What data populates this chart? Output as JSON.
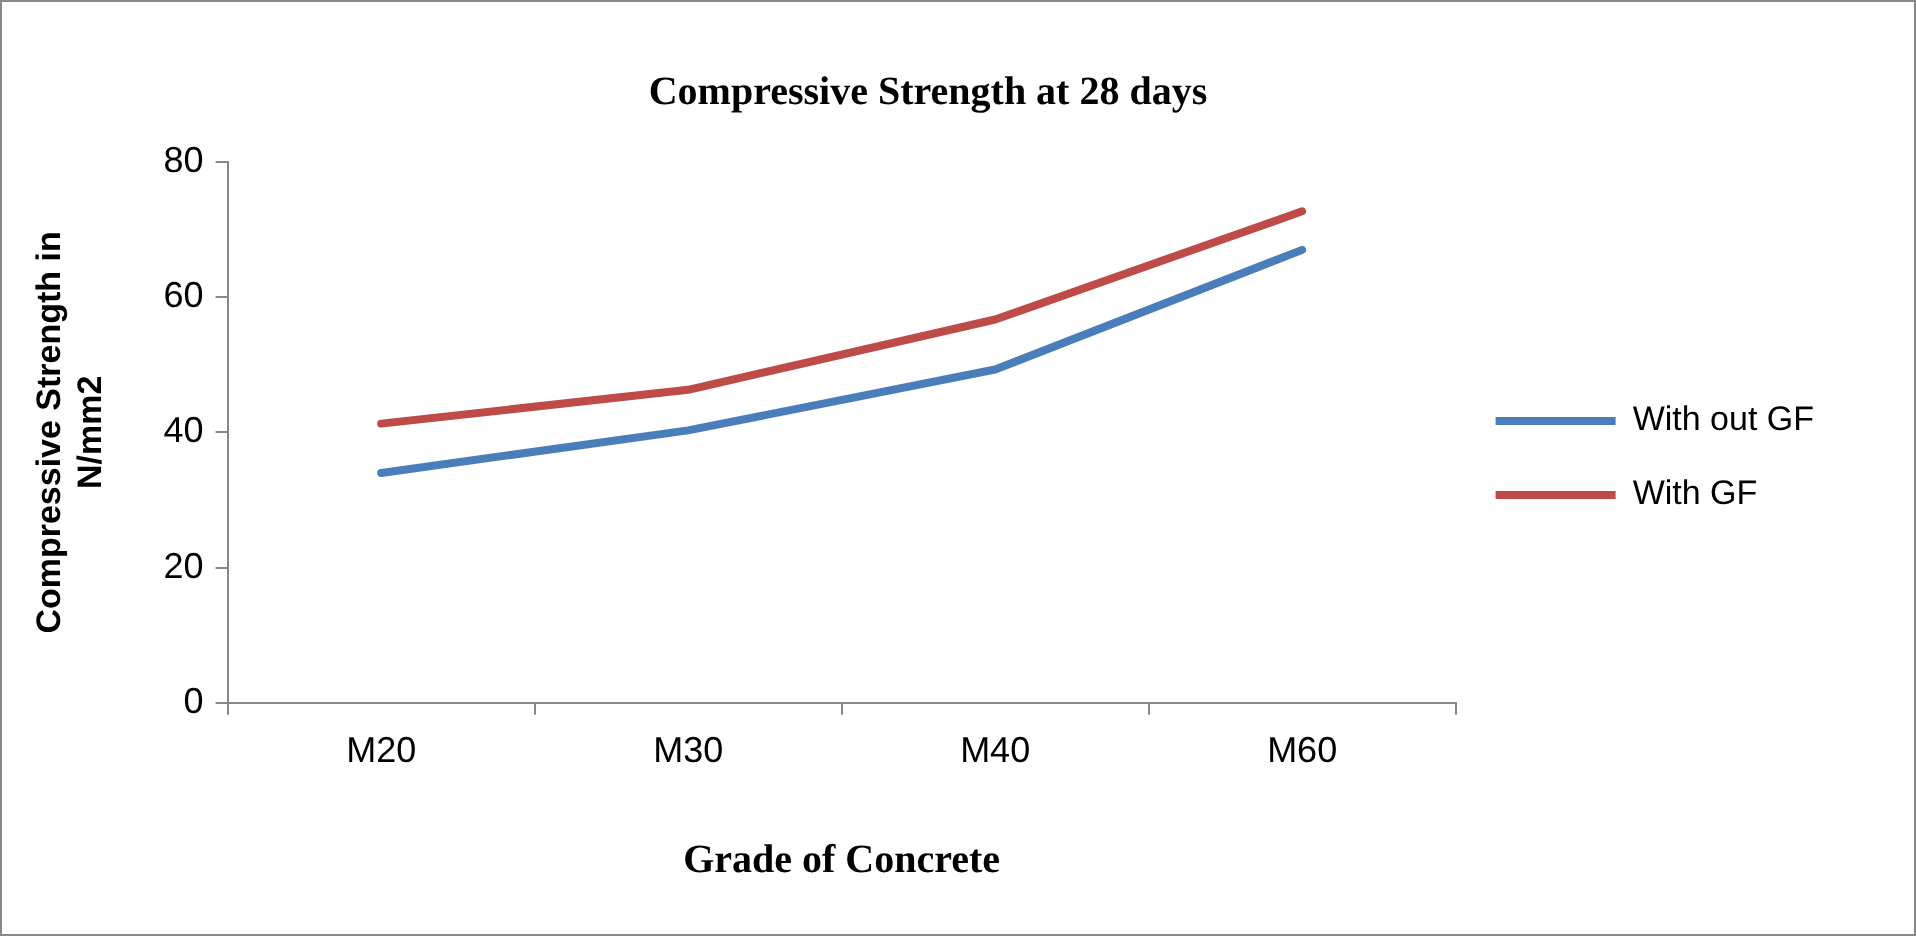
{
  "chart_data": {
    "type": "line",
    "title": "Compressive Strength at 28 days",
    "xlabel": "Grade of Concrete",
    "ylabel": "Compressive Strength in N/mm2",
    "categories": [
      "M20",
      "M30",
      "M40",
      "M60"
    ],
    "series": [
      {
        "name": "With out GF",
        "color": "#4a7ebb",
        "values": [
          34,
          40.3,
          49.3,
          67
        ]
      },
      {
        "name": "With GF",
        "color": "#be4b48",
        "values": [
          41.3,
          46.3,
          56.7,
          72.7
        ]
      }
    ],
    "ylim": [
      0,
      80
    ],
    "yticks": [
      0,
      20,
      40,
      60,
      80
    ],
    "grid": false,
    "legend": "right",
    "marker": "none",
    "line_style": "solid"
  }
}
